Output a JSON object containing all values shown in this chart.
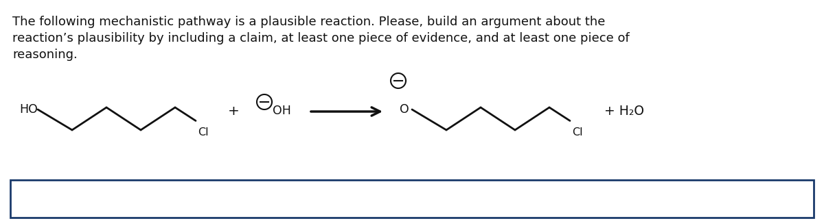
{
  "title_line1": "The following mechanistic pathway is a plausible reaction. Please, build an argument about the",
  "title_line2": "reaction’s plausibility by including a claim, at least one piece of evidence, and at least one piece of",
  "title_line3": "reasoning.",
  "bg_color": "#ffffff",
  "line_color": "#111111",
  "font_size_title": 13.0,
  "font_size_chem": 12.5,
  "box_color": "#1a3a6b",
  "figsize": [
    12.0,
    3.23
  ],
  "dpi": 100
}
